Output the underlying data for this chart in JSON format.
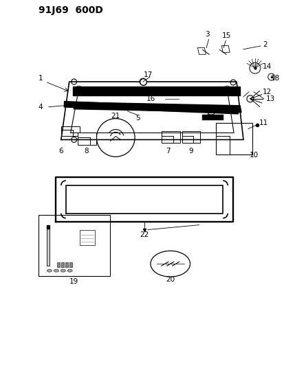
{
  "title": "91J69  600D",
  "bg_color": "#ffffff",
  "fig_width": 4.14,
  "fig_height": 5.33,
  "dpi": 100,
  "title_fontsize": 10,
  "label_fontsize": 7.5
}
